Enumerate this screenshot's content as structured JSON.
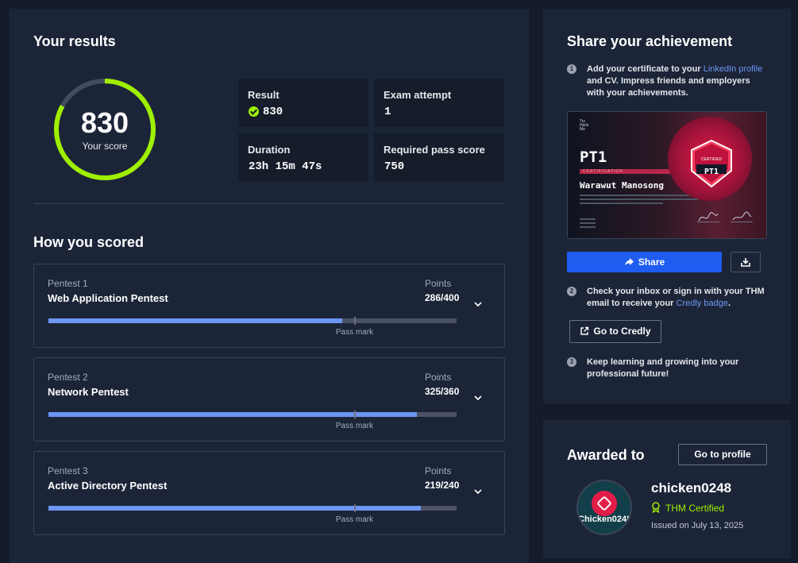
{
  "results": {
    "title": "Your results",
    "score": "830",
    "score_caption": "Your score",
    "score_fraction": 0.83,
    "stats": {
      "result_label": "Result",
      "result_value": "830",
      "attempt_label": "Exam attempt",
      "attempt_value": "1",
      "duration_label": "Duration",
      "duration_value": "23h 15m 47s",
      "pass_label": "Required pass score",
      "pass_value": "750"
    }
  },
  "scored": {
    "title": "How you scored",
    "points_label": "Points",
    "pass_mark_label": "Pass mark",
    "pentests": [
      {
        "number": "Pentest 1",
        "name": "Web Application Pentest",
        "points": "286/400",
        "score_fraction": 0.72,
        "pass_fraction": 0.75
      },
      {
        "number": "Pentest 2",
        "name": "Network Pentest",
        "points": "325/360",
        "score_fraction": 0.903,
        "pass_fraction": 0.75
      },
      {
        "number": "Pentest 3",
        "name": "Active Directory Pentest",
        "points": "219/240",
        "score_fraction": 0.9125,
        "pass_fraction": 0.75
      }
    ]
  },
  "share": {
    "title": "Share your achievement",
    "step1_num": "1",
    "step1_a": "Add your certificate to your ",
    "step1_link": "LinkedIn profile",
    "step1_b": " and CV. Impress friends and employers with your achievements.",
    "certificate": {
      "logo": "Try\nHack\nMe",
      "title": "PT1",
      "strip": "CERTIFICATION",
      "holder": "Warawut Manosong",
      "badge_sub": "CERTIFIED",
      "badge_code": "PT1"
    },
    "share_label": "Share",
    "step2_num": "2",
    "step2_a": "Check your inbox or sign in with your THM email to receive your ",
    "step2_link": "Credly badge",
    "step2_b": ".",
    "credly_label": "Go to Credly",
    "step3_num": "3",
    "step3_text": "Keep learning and growing into your professional future!"
  },
  "awarded": {
    "title": "Awarded to",
    "profile_label": "Go to profile",
    "avatar_name": "Chicken0248",
    "username": "chicken0248",
    "certified": "THM Certified",
    "issued": "Issued on July 13, 2025"
  },
  "colors": {
    "accent_green": "#9fef00",
    "bar_blue": "#6d96f2",
    "primary_button": "#1f5cf0",
    "link": "#6d96f2"
  }
}
